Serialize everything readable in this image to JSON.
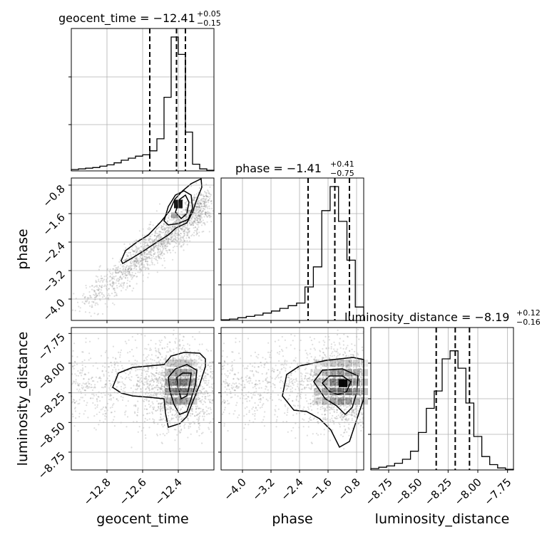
{
  "chart_data": {
    "type": "corner",
    "parameters": [
      "geocent_time",
      "phase",
      "luminosity_distance"
    ],
    "axis_labels": {
      "geocent_time": "geocent_time",
      "phase": "phase",
      "luminosity_distance": "luminosity_distance"
    },
    "titles": [
      {
        "param": "geocent_time",
        "text": "geocent_time = −12.41",
        "plus": "+0.05",
        "minus": "−0.15"
      },
      {
        "param": "phase",
        "text": "phase = −1.41",
        "plus": "+0.41",
        "minus": "−0.75"
      },
      {
        "param": "luminosity_distance",
        "text": "luminosity_distance = −8.19",
        "plus": "+0.12",
        "minus": "−0.16"
      }
    ],
    "ranges": {
      "geocent_time": [
        -13.0,
        -12.2
      ],
      "phase": [
        -4.6,
        -0.6
      ],
      "luminosity_distance": [
        -8.9,
        -7.7
      ]
    },
    "ticks": {
      "geocent_time": [
        -12.8,
        -12.6,
        -12.4
      ],
      "phase_x": [
        -4.0,
        -3.2,
        -2.4,
        -1.6,
        -0.8
      ],
      "phase_y": [
        -0.8,
        -1.6,
        -2.4,
        -3.2,
        -4.0
      ],
      "luminosity_distance": [
        -8.75,
        -8.5,
        -8.25,
        -8.0,
        -7.75
      ]
    },
    "tick_labels": {
      "geocent_time": [
        "−12.8",
        "−12.6",
        "−12.4"
      ],
      "phase": [
        "−4.0",
        "−3.2",
        "−2.4",
        "−1.6",
        "−0.8"
      ],
      "luminosity_distance": [
        "−8.75",
        "−8.50",
        "−8.25",
        "−8.00",
        "−7.75"
      ]
    },
    "quantiles": {
      "geocent_time": [
        -12.56,
        -12.41,
        -12.36
      ],
      "phase": [
        -2.16,
        -1.41,
        -1.0
      ],
      "luminosity_distance": [
        -8.35,
        -8.19,
        -8.07
      ]
    },
    "histograms": {
      "geocent_time": [
        0.01,
        0.015,
        0.02,
        0.025,
        0.035,
        0.045,
        0.06,
        0.08,
        0.095,
        0.11,
        0.12,
        0.15,
        0.24,
        0.55,
        1.0,
        0.87,
        0.29,
        0.05,
        0.015,
        0.005
      ],
      "phase": [
        0.005,
        0.01,
        0.02,
        0.03,
        0.04,
        0.055,
        0.07,
        0.09,
        0.11,
        0.13,
        0.25,
        0.4,
        0.82,
        1.0,
        0.74,
        0.45,
        0.1
      ],
      "luminosity_distance": [
        0.01,
        0.02,
        0.03,
        0.05,
        0.08,
        0.14,
        0.28,
        0.46,
        0.59,
        0.83,
        0.89,
        0.76,
        0.5,
        0.25,
        0.1,
        0.04,
        0.015,
        0.005
      ]
    },
    "densities_2d": {
      "phase_vs_geocent_time": {
        "center": [
          -12.41,
          -1.3
        ],
        "trend": "positive linear correlation",
        "tail_toward": [
          -12.95,
          -4.1
        ]
      },
      "luminosity_distance_vs_geocent_time": {
        "center": [
          -12.4,
          -8.2
        ]
      },
      "luminosity_distance_vs_phase": {
        "center": [
          -1.15,
          -8.2
        ]
      }
    },
    "grid": true,
    "contour_levels": 3
  }
}
